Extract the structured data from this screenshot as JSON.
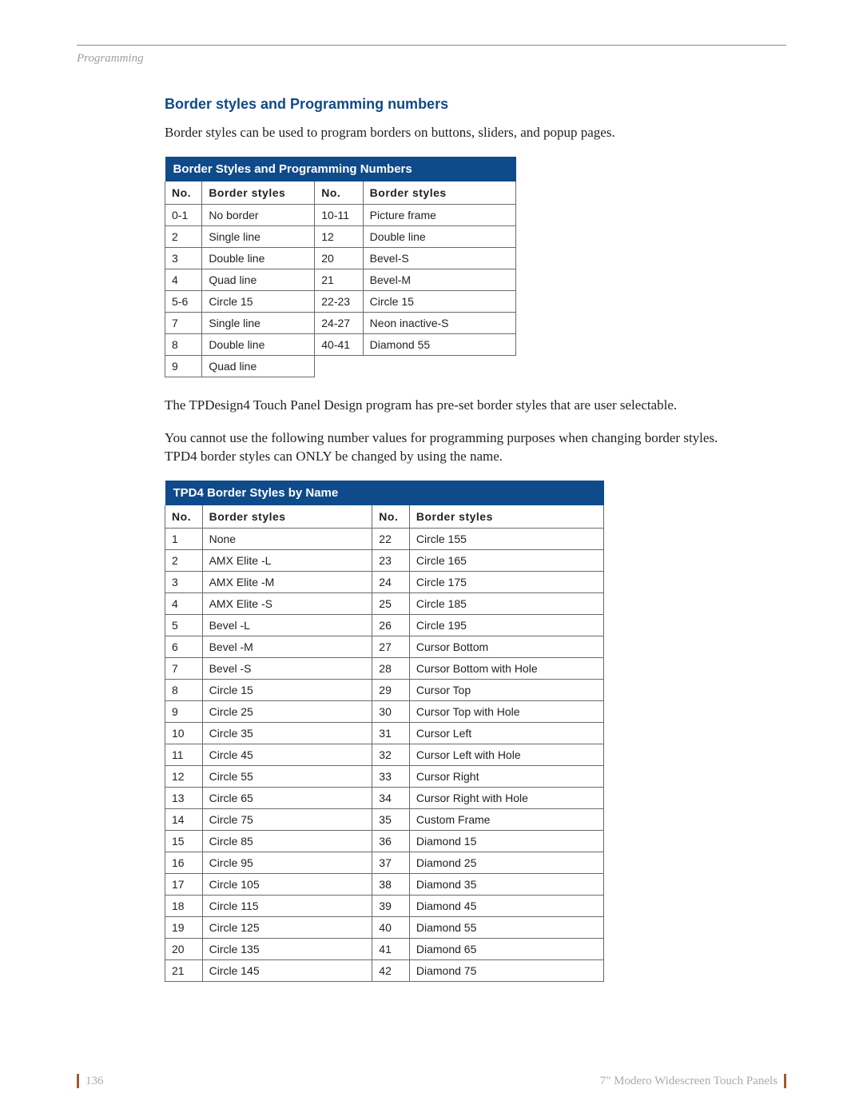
{
  "header": {
    "section_label": "Programming"
  },
  "heading": "Border styles and Programming numbers",
  "intro": "Border styles can be used to program borders on buttons, sliders, and popup pages.",
  "table1": {
    "title": "Border Styles and Programming Numbers",
    "columns": [
      "No.",
      "Border styles",
      "No.",
      "Border styles"
    ],
    "rows": [
      [
        "0-1",
        "No border",
        "10-11",
        "Picture frame"
      ],
      [
        "2",
        "Single line",
        "12",
        "Double line"
      ],
      [
        "3",
        "Double line",
        "20",
        "Bevel-S"
      ],
      [
        "4",
        "Quad line",
        "21",
        "Bevel-M"
      ],
      [
        "5-6",
        "Circle 15",
        "22-23",
        "Circle 15"
      ],
      [
        "7",
        "Single line",
        "24-27",
        "Neon inactive-S"
      ],
      [
        "8",
        "Double line",
        "40-41",
        "Diamond 55"
      ],
      [
        "9",
        "Quad line",
        "",
        ""
      ]
    ]
  },
  "mid1": "The TPDesign4 Touch Panel Design program has pre-set border styles that are user selectable.",
  "mid2": "You cannot use the following number values for programming purposes when changing border styles. TPD4 border styles can ONLY be changed by using the name.",
  "table2": {
    "title": "TPD4 Border Styles by Name",
    "columns": [
      "No.",
      "Border styles",
      "No.",
      "Border styles"
    ],
    "rows": [
      [
        "1",
        "None",
        "22",
        "Circle 155"
      ],
      [
        "2",
        "AMX Elite -L",
        "23",
        "Circle 165"
      ],
      [
        "3",
        "AMX Elite -M",
        "24",
        "Circle 175"
      ],
      [
        "4",
        "AMX Elite -S",
        "25",
        "Circle 185"
      ],
      [
        "5",
        "Bevel -L",
        "26",
        "Circle 195"
      ],
      [
        "6",
        "Bevel -M",
        "27",
        "Cursor Bottom"
      ],
      [
        "7",
        "Bevel -S",
        "28",
        "Cursor Bottom with Hole"
      ],
      [
        "8",
        "Circle 15",
        "29",
        "Cursor Top"
      ],
      [
        "9",
        "Circle 25",
        "30",
        "Cursor Top with Hole"
      ],
      [
        "10",
        "Circle 35",
        "31",
        "Cursor Left"
      ],
      [
        "11",
        "Circle 45",
        "32",
        "Cursor Left with Hole"
      ],
      [
        "12",
        "Circle 55",
        "33",
        "Cursor Right"
      ],
      [
        "13",
        "Circle 65",
        "34",
        "Cursor Right with Hole"
      ],
      [
        "14",
        "Circle 75",
        "35",
        "Custom Frame"
      ],
      [
        "15",
        "Circle 85",
        "36",
        "Diamond 15"
      ],
      [
        "16",
        "Circle 95",
        "37",
        "Diamond 25"
      ],
      [
        "17",
        "Circle 105",
        "38",
        "Diamond 35"
      ],
      [
        "18",
        "Circle 115",
        "39",
        "Diamond 45"
      ],
      [
        "19",
        "Circle 125",
        "40",
        "Diamond 55"
      ],
      [
        "20",
        "Circle 135",
        "41",
        "Diamond 65"
      ],
      [
        "21",
        "Circle 145",
        "42",
        "Diamond 75"
      ]
    ]
  },
  "footer": {
    "page_number": "136",
    "doc_title": "7\" Modero Widescreen Touch Panels"
  }
}
